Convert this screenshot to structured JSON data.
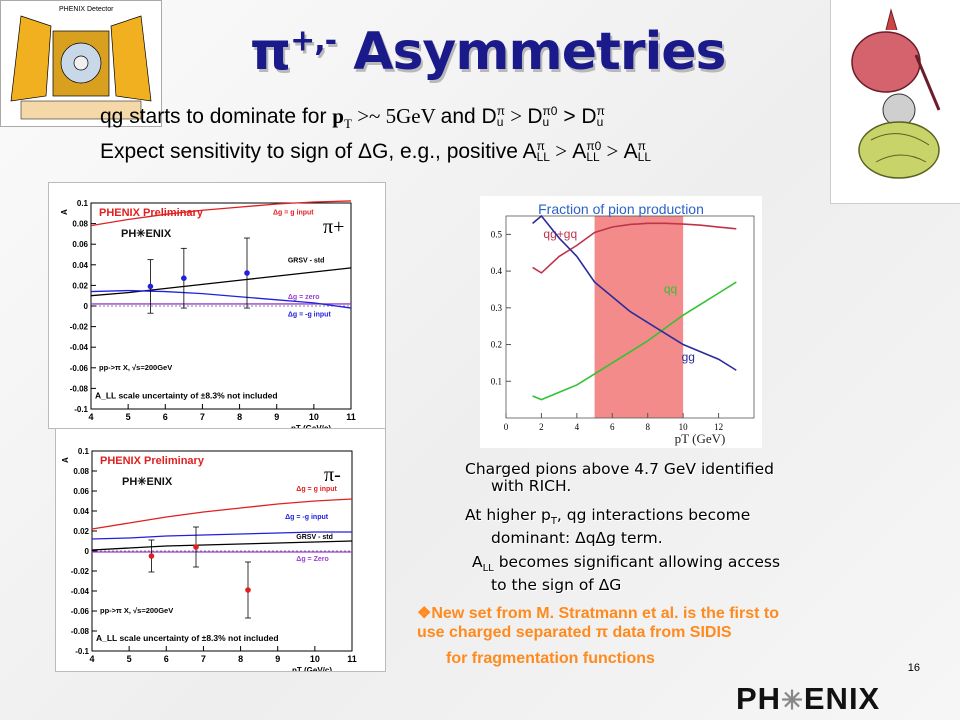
{
  "slide": {
    "title": "π+,- Asymmetries",
    "title_parts": {
      "pi": "π",
      "sup": "+,-",
      "rest": " Asymmetries"
    },
    "line1": {
      "a": "qg starts to dominate for ",
      "pT": "p",
      "pT_sub": "T",
      "cond": " >~ 5GeV ",
      "and": "and ",
      "D": "D",
      "sup_pi": "π",
      "sup_pi0": "0",
      "sub_u": "u",
      "gt1": " > ",
      "gt2": " > "
    },
    "line2": {
      "a": "Expect sensitivity to sign of ",
      "dG": "ΔG",
      "b": ", e.g., positive ",
      "A": "A",
      "sub_LL": "LL",
      "gt": " > "
    },
    "notes": [
      {
        "l1": "Charged pions above 4.7 GeV identified",
        "l2": "with RICH."
      },
      {
        "l1a": "At higher p",
        "l1sub": "T",
        "l1b": ", qg interactions become",
        "l2": "dominant: ΔqΔg term."
      },
      {
        "l1a": "A",
        "l1sub": "LL",
        "l1b": " becomes significant allowing access",
        "l2": "to the sign of ΔG"
      }
    ],
    "highlight": {
      "bullet": "❖",
      "l1": "New set from M. Stratmann et al. is the first to",
      "l2a": "use charged separated ",
      "pi": "π",
      "l2b": " data from SIDIS",
      "l3": "for fragmentation functions"
    },
    "page_number": "16",
    "logo_text": {
      "a": "PH",
      "star": "✳",
      "b": "ENIX"
    },
    "detector_label": "PHENIX Detector"
  },
  "colors": {
    "title": "#1a1a8a",
    "orange_text": "#ff8a1e",
    "band": "#f38b8b",
    "qg": "#c0344a",
    "qq": "#33c233",
    "gg": "#2c2c9c",
    "red": "#e02020",
    "blue": "#2020e0",
    "black": "#000000",
    "purple": "#9a3fd6",
    "caption": "#2a62c9"
  },
  "chart_data": [
    {
      "type": "line",
      "title": "Fraction of pion production",
      "xlabel": "p_T (GeV)",
      "ylabel": "",
      "xlim": [
        0,
        14
      ],
      "ylim": [
        0,
        0.55
      ],
      "xticks": [
        0,
        2,
        4,
        6,
        8,
        10,
        12
      ],
      "yticks": [
        0.1,
        0.2,
        0.3,
        0.4,
        0.5
      ],
      "band": [
        5,
        10
      ],
      "grid": false,
      "series": [
        {
          "name": "qg+gq",
          "color": "#c0344a",
          "x": [
            1.5,
            2,
            3,
            4,
            5,
            6,
            7,
            8,
            9,
            10,
            11,
            12,
            13
          ],
          "y": [
            0.41,
            0.395,
            0.44,
            0.47,
            0.505,
            0.52,
            0.527,
            0.53,
            0.53,
            0.528,
            0.525,
            0.52,
            0.515
          ]
        },
        {
          "name": "qq",
          "color": "#33c233",
          "x": [
            1.5,
            2,
            3,
            4,
            5,
            6,
            7,
            8,
            9,
            10,
            11,
            12,
            13
          ],
          "y": [
            0.06,
            0.05,
            0.07,
            0.09,
            0.12,
            0.15,
            0.18,
            0.21,
            0.245,
            0.28,
            0.31,
            0.34,
            0.37
          ]
        },
        {
          "name": "gg",
          "color": "#2c2c9c",
          "x": [
            1.5,
            2,
            3,
            4,
            5,
            6,
            7,
            8,
            9,
            10,
            11,
            12,
            13
          ],
          "y": [
            0.53,
            0.55,
            0.49,
            0.44,
            0.37,
            0.33,
            0.29,
            0.26,
            0.23,
            0.2,
            0.18,
            0.16,
            0.13
          ]
        }
      ]
    },
    {
      "type": "scatter",
      "panel_label": "π+",
      "header": "PHENIX Preliminary",
      "xlabel": "p_T^π (GeV/c)",
      "ylabel": "A_LL^π",
      "xlim": [
        4,
        11
      ],
      "ylim": [
        -0.1,
        0.1
      ],
      "xticks": [
        4,
        5,
        6,
        7,
        8,
        9,
        10,
        11
      ],
      "yticks": [
        0.1,
        0.08,
        0.06,
        0.04,
        0.02,
        0,
        -0.02,
        -0.04,
        -0.06,
        -0.08,
        -0.1
      ],
      "process": "pp->π X, √s=200GeV",
      "scale_note": "A_LL scale uncertainty of ±8.3% not included",
      "curves": [
        {
          "name": "Δg = g input",
          "color": "#e02020",
          "x": [
            4,
            5,
            6,
            7,
            8,
            9,
            10,
            11
          ],
          "y": [
            0.078,
            0.084,
            0.089,
            0.093,
            0.096,
            0.099,
            0.101,
            0.102
          ]
        },
        {
          "name": "GRSV - std",
          "color": "#000000",
          "x": [
            4,
            5,
            6,
            7,
            8,
            9,
            10,
            11
          ],
          "y": [
            0.01,
            0.013,
            0.017,
            0.021,
            0.025,
            0.029,
            0.033,
            0.037
          ]
        },
        {
          "name": "Δg = zero",
          "color": "#9a3fd6",
          "x": [
            4,
            5,
            6,
            7,
            8,
            9,
            10,
            11
          ],
          "y": [
            0.002,
            0.002,
            0.002,
            0.002,
            0.002,
            0.002,
            0.002,
            0.002
          ]
        },
        {
          "name": "Δg = -g input",
          "color": "#2020e0",
          "x": [
            4,
            5,
            6,
            7,
            8,
            9,
            10,
            11
          ],
          "y": [
            0.014,
            0.015,
            0.014,
            0.012,
            0.009,
            0.006,
            0.003,
            -0.002
          ]
        }
      ],
      "points": {
        "color": "#2020e0",
        "x": [
          5.6,
          6.5,
          8.2
        ],
        "y": [
          0.019,
          0.027,
          0.032
        ],
        "err": [
          0.026,
          0.029,
          0.034
        ]
      }
    },
    {
      "type": "scatter",
      "panel_label": "π-",
      "header": "PHENIX Preliminary",
      "xlabel": "p_T^π (GeV/c)",
      "ylabel": "A_LL^π",
      "xlim": [
        4,
        11
      ],
      "ylim": [
        -0.1,
        0.1
      ],
      "xticks": [
        4,
        5,
        6,
        7,
        8,
        9,
        10,
        11
      ],
      "yticks": [
        0.1,
        0.08,
        0.06,
        0.04,
        0.02,
        0,
        -0.02,
        -0.04,
        -0.06,
        -0.08,
        -0.1
      ],
      "process": "pp->π X, √s=200GeV",
      "scale_note": "A_LL scale uncertainty of ±8.3% not included",
      "curves": [
        {
          "name": "Δg = g input",
          "color": "#e02020",
          "x": [
            4,
            5,
            6,
            7,
            8,
            9,
            10,
            11
          ],
          "y": [
            0.022,
            0.028,
            0.034,
            0.039,
            0.043,
            0.047,
            0.05,
            0.052
          ]
        },
        {
          "name": "Δg = -g input",
          "color": "#2020e0",
          "x": [
            4,
            5,
            6,
            7,
            8,
            9,
            10,
            11
          ],
          "y": [
            0.012,
            0.013,
            0.015,
            0.016,
            0.017,
            0.018,
            0.019,
            0.019
          ]
        },
        {
          "name": "GRSV - std",
          "color": "#000000",
          "x": [
            4,
            5,
            6,
            7,
            8,
            9,
            10,
            11
          ],
          "y": [
            0.001,
            0.003,
            0.005,
            0.006,
            0.007,
            0.008,
            0.009,
            0.01
          ]
        },
        {
          "name": "Δg = Zero",
          "color": "#9a3fd6",
          "x": [
            4,
            5,
            6,
            7,
            8,
            9,
            10,
            11
          ],
          "y": [
            -0.001,
            -0.001,
            -0.001,
            -0.001,
            -0.001,
            -0.001,
            -0.001,
            -0.001
          ]
        }
      ],
      "points": {
        "color": "#e02020",
        "x": [
          5.6,
          6.8,
          8.2
        ],
        "y": [
          -0.005,
          0.004,
          -0.039
        ],
        "err": [
          0.016,
          0.02,
          0.028
        ]
      }
    }
  ]
}
